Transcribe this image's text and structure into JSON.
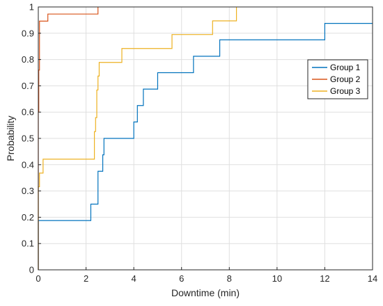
{
  "chart_data": {
    "type": "line",
    "step": true,
    "xlabel": "Downtime (min)",
    "ylabel": "Probability",
    "xlim": [
      0,
      14
    ],
    "ylim": [
      0,
      1
    ],
    "xticks": [
      0,
      2,
      4,
      6,
      8,
      10,
      12,
      14
    ],
    "yticks": [
      0,
      0.1,
      0.2,
      0.3,
      0.4,
      0.5,
      0.6,
      0.7,
      0.8,
      0.9,
      1
    ],
    "xtick_labels": [
      "0",
      "2",
      "4",
      "6",
      "8",
      "10",
      "12",
      "14"
    ],
    "ytick_labels": [
      "0",
      "0.1",
      "0.2",
      "0.3",
      "0.4",
      "0.5",
      "0.6",
      "0.7",
      "0.8",
      "0.9",
      "1"
    ],
    "grid": true,
    "legend_position": "right",
    "series": [
      {
        "name": "Group 1",
        "color": "#0072BD",
        "x": [
          0,
          0,
          2.2,
          2.2,
          2.5,
          2.5,
          2.7,
          2.7,
          2.75,
          2.75,
          4.0,
          4.0,
          4.15,
          4.15,
          4.4,
          4.4,
          5.0,
          5.0,
          6.5,
          6.5,
          7.6,
          7.6,
          12.0,
          12.0,
          14
        ],
        "y": [
          0,
          0.1875,
          0.1875,
          0.25,
          0.25,
          0.375,
          0.375,
          0.4375,
          0.4375,
          0.5,
          0.5,
          0.5625,
          0.5625,
          0.625,
          0.625,
          0.6875,
          0.6875,
          0.75,
          0.75,
          0.8125,
          0.8125,
          0.875,
          0.875,
          0.9375,
          0.9375
        ]
      },
      {
        "name": "Group 2",
        "color": "#D95319",
        "x": [
          0,
          0,
          0.02,
          0.02,
          0.05,
          0.05,
          0.4,
          0.4,
          2.5,
          2.5
        ],
        "y": [
          0,
          0.6,
          0.6,
          0.76,
          0.76,
          0.946,
          0.946,
          0.973,
          0.973,
          1.0
        ]
      },
      {
        "name": "Group 3",
        "color": "#EDB120",
        "x": [
          0,
          0,
          0.05,
          0.05,
          0.2,
          0.2,
          2.35,
          2.35,
          2.4,
          2.4,
          2.45,
          2.45,
          2.5,
          2.5,
          2.55,
          2.55,
          3.5,
          3.5,
          5.6,
          5.6,
          7.3,
          7.3,
          8.3,
          8.3
        ],
        "y": [
          0,
          0.316,
          0.316,
          0.368,
          0.368,
          0.421,
          0.421,
          0.526,
          0.526,
          0.579,
          0.579,
          0.684,
          0.684,
          0.737,
          0.737,
          0.789,
          0.789,
          0.842,
          0.842,
          0.895,
          0.895,
          0.947,
          0.947,
          1.0
        ]
      }
    ]
  }
}
